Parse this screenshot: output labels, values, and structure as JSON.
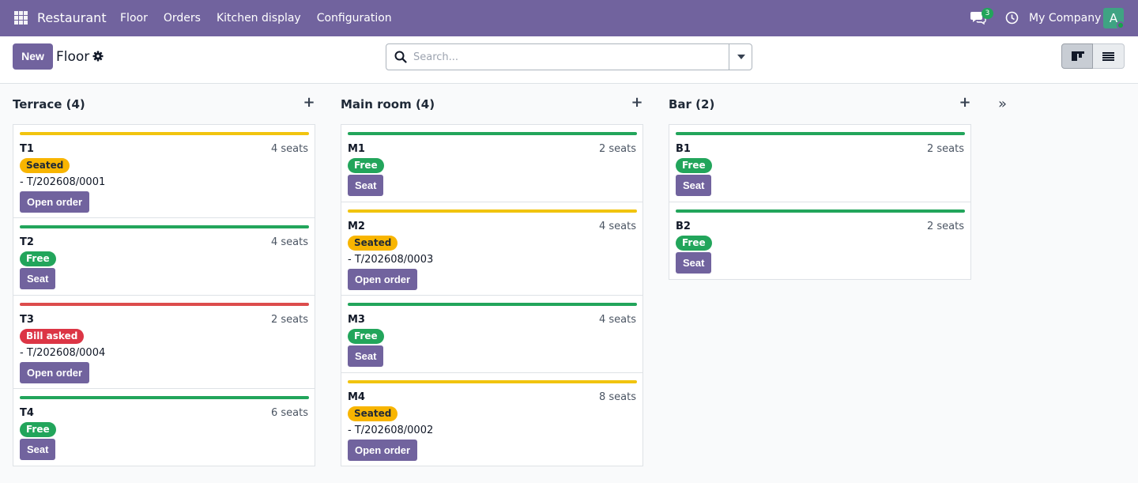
{
  "navbar": {
    "brand": "Restaurant",
    "menu": [
      {
        "label": "Floor"
      },
      {
        "label": "Orders"
      },
      {
        "label": "Kitchen display"
      },
      {
        "label": "Configuration"
      }
    ],
    "chat_badge": "3",
    "company": "My Company",
    "avatar_letter": "A",
    "accent_color": "#71639e"
  },
  "control_panel": {
    "new_label": "New",
    "title": "Floor",
    "search_placeholder": "Search..."
  },
  "columns": [
    {
      "header": "Terrace (4)",
      "cards": [
        {
          "name": "T1",
          "seats": "4 seats",
          "status": "Seated",
          "status_color": "#f8b500",
          "order": "- T/202608/0001",
          "button": "Open order"
        },
        {
          "name": "T2",
          "seats": "4 seats",
          "status": "Free",
          "status_color": "#22a55b",
          "order": "",
          "button": "Seat"
        },
        {
          "name": "T3",
          "seats": "2 seats",
          "status": "Bill asked",
          "status_color": "#dc3545",
          "order": "- T/202608/0004",
          "button": "Open order"
        },
        {
          "name": "T4",
          "seats": "6 seats",
          "status": "Free",
          "status_color": "#22a55b",
          "order": "",
          "button": "Seat"
        }
      ]
    },
    {
      "header": "Main room (4)",
      "cards": [
        {
          "name": "M1",
          "seats": "2 seats",
          "status": "Free",
          "status_color": "#22a55b",
          "order": "",
          "button": "Seat"
        },
        {
          "name": "M2",
          "seats": "4 seats",
          "status": "Seated",
          "status_color": "#f8b500",
          "order": "- T/202608/0003",
          "button": "Open order"
        },
        {
          "name": "M3",
          "seats": "4 seats",
          "status": "Free",
          "status_color": "#22a55b",
          "order": "",
          "button": "Seat"
        },
        {
          "name": "M4",
          "seats": "8 seats",
          "status": "Seated",
          "status_color": "#f8b500",
          "order": "- T/202608/0002",
          "button": "Open order"
        }
      ]
    },
    {
      "header": "Bar (2)",
      "cards": [
        {
          "name": "B1",
          "seats": "2 seats",
          "status": "Free",
          "status_color": "#22a55b",
          "order": "",
          "button": "Seat"
        },
        {
          "name": "B2",
          "seats": "2 seats",
          "status": "Free",
          "status_color": "#22a55b",
          "order": "",
          "button": "Seat"
        }
      ]
    }
  ]
}
